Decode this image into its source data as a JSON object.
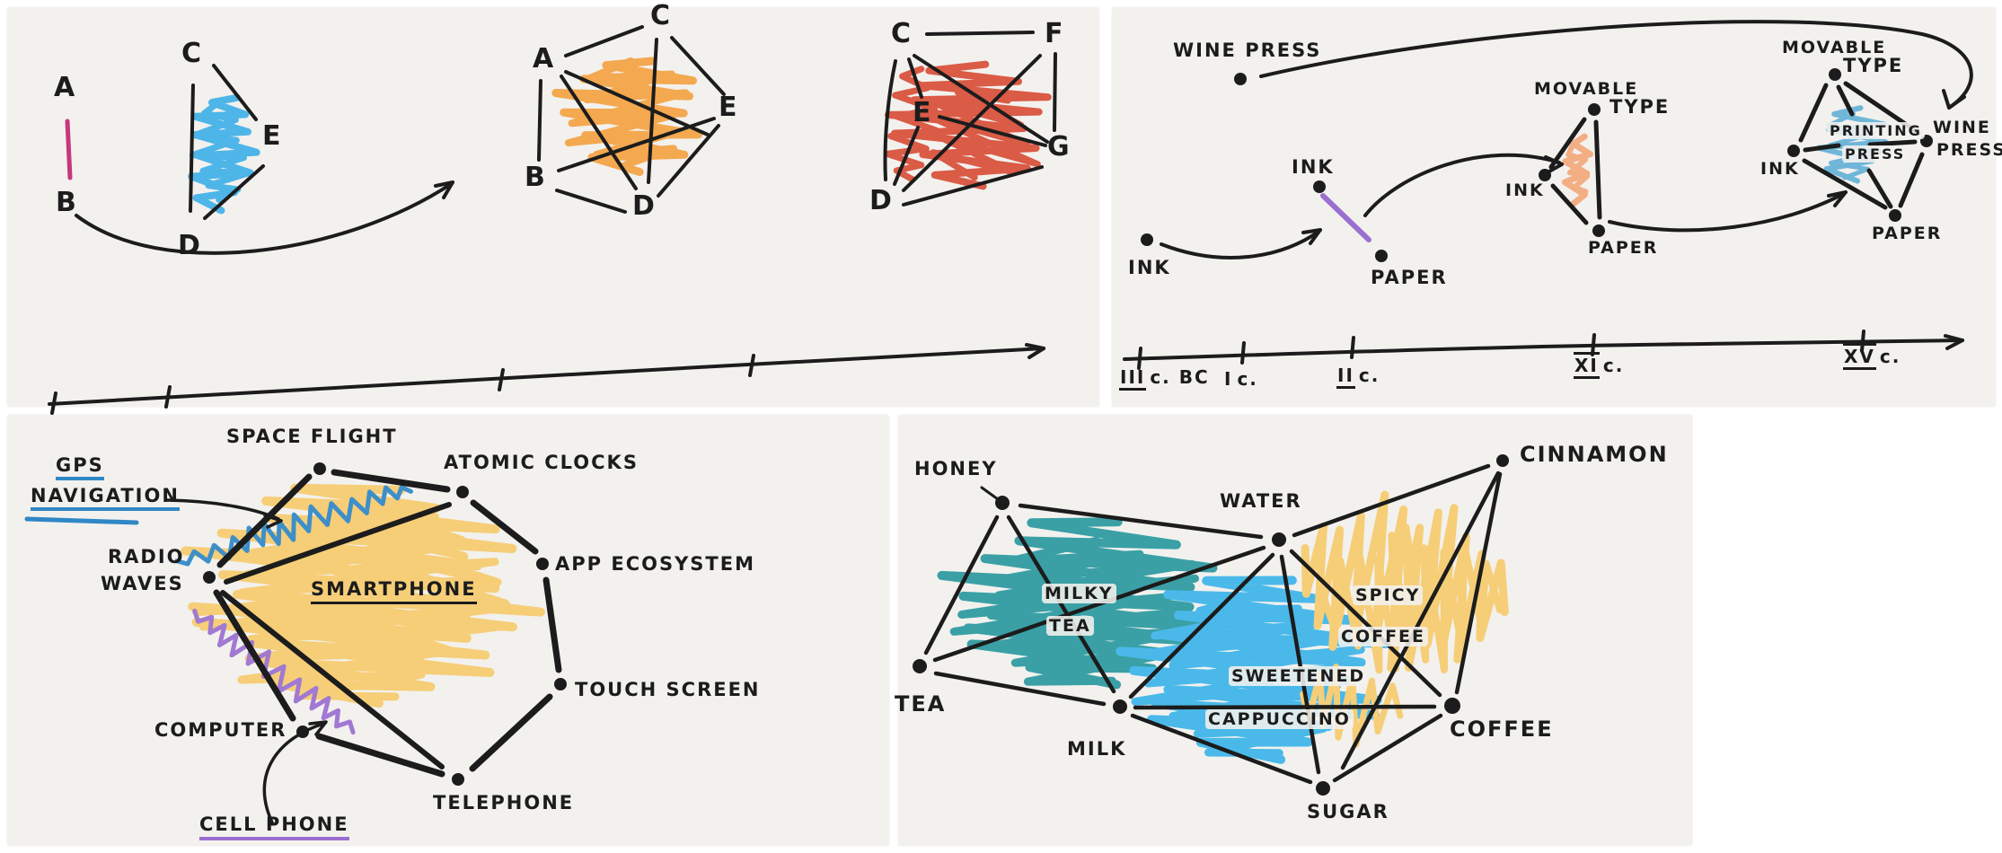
{
  "colors": {
    "paper": "#f2f1ee",
    "ink": "#1c1c1c",
    "magenta": "#c8367d",
    "blue_fill": "#41b0e8",
    "orange_fill": "#f5a243",
    "red_fill": "#d94f38",
    "peach_fill": "#f4a97c",
    "steel_blue_fill": "#64b2d8",
    "yellow_fill": "#f7cc6f",
    "gps_blue": "#2f87c6",
    "purple": "#9b6fd0",
    "teal_fill": "#2b9aa0",
    "cappuccino_blue": "#3cb5ea"
  },
  "graph_panel": {
    "stage1": {
      "nodes": [
        "A",
        "B",
        "C",
        "E",
        "D"
      ]
    },
    "stage2": {
      "nodes": [
        "A",
        "C",
        "E",
        "B",
        "D"
      ]
    },
    "stage3": {
      "nodes": [
        "C",
        "F",
        "E",
        "G",
        "D"
      ]
    }
  },
  "printing_panel": {
    "wine_press_early": "WINE PRESS",
    "ink_first": "INK",
    "pair": {
      "ink": "INK",
      "paper": "PAPER"
    },
    "triangle": {
      "movable": "MOVABLE",
      "type": "TYPE",
      "ink": "INK",
      "paper": "PAPER"
    },
    "diamond": {
      "movable": "MOVABLE",
      "type": "TYPE",
      "ink": "INK",
      "wine": "WINE",
      "press": "PRESS",
      "paper": "PAPER",
      "printing": "PRINTING",
      "printing_press_2": "PRESS"
    },
    "timeline": [
      {
        "numeral": "III",
        "suffix": "c. BC"
      },
      {
        "numeral": "I",
        "suffix": "c."
      },
      {
        "numeral": "II",
        "suffix": "c."
      },
      {
        "numeral": "XI",
        "suffix": "c."
      },
      {
        "numeral": "XV",
        "suffix": "c."
      }
    ]
  },
  "smartphone_panel": {
    "nodes": {
      "space_flight": "SPACE FLIGHT",
      "atomic_clocks": "ATOMIC CLOCKS",
      "app_ecosystem": "APP ECOSYSTEM",
      "touch_screen": "TOUCH SCREEN",
      "telephone": "TELEPHONE",
      "computer": "COMPUTER",
      "radio": "RADIO",
      "waves": "WAVES"
    },
    "center": "SMARTPHONE",
    "annotations": {
      "gps": "GPS",
      "navigation": "NAVIGATION",
      "cell_phone": "CELL PHONE"
    }
  },
  "drinks_panel": {
    "nodes": {
      "honey": "HONEY",
      "water": "WATER",
      "cinnamon": "CINNAMON",
      "tea": "TEA",
      "milk": "MILK",
      "sugar": "SUGAR",
      "coffee": "COFFEE"
    },
    "regions": {
      "milky": "MILKY",
      "tea": "TEA",
      "spicy": "SPICY",
      "coffee": "COFFEE",
      "sweetened": "SWEETENED",
      "cappuccino": "CAPPUCCINO"
    }
  }
}
